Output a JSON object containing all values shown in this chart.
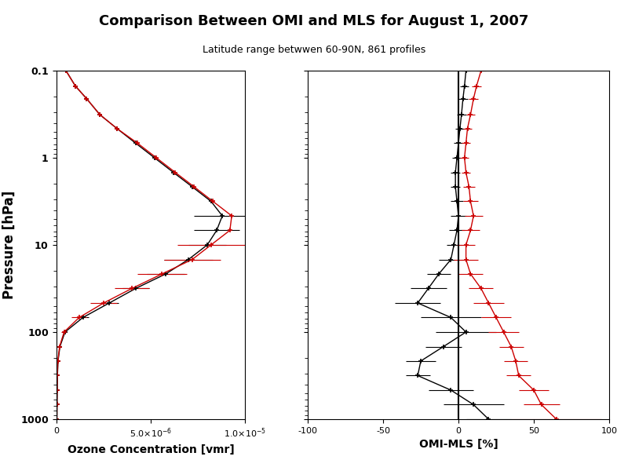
{
  "title": "Comparison Between OMI and MLS for August 1, 2007",
  "subtitle": "Latitude range betwwen 60-90N, 861 profiles",
  "xlabel_left": "Ozone Concentration [vmr]",
  "xlabel_right": "OMI-MLS [%]",
  "ylabel": "Pressure [hPa]",
  "pressure": [
    0.1,
    0.15,
    0.21,
    0.32,
    0.46,
    0.68,
    1.0,
    1.47,
    2.15,
    3.16,
    4.64,
    6.81,
    10.0,
    14.7,
    21.5,
    31.6,
    46.4,
    68.1,
    100.0,
    147.0,
    215.0,
    316.0,
    464.0,
    681.0,
    1000.0
  ],
  "mls_vmr": [
    5e-07,
    1e-06,
    1.6e-06,
    2.3e-06,
    3.2e-06,
    4.2e-06,
    5.2e-06,
    6.2e-06,
    7.2e-06,
    8.2e-06,
    8.8e-06,
    8.5e-06,
    8e-06,
    7e-06,
    5.8e-06,
    4.2e-06,
    2.8e-06,
    1.4e-06,
    4.5e-07,
    1.8e-07,
    8e-08,
    5e-08,
    3.5e-08,
    2.5e-08,
    2e-08
  ],
  "mls_xerr": [
    1e-08,
    1e-08,
    1e-08,
    1e-08,
    1e-08,
    1e-08,
    1e-08,
    1e-08,
    1e-08,
    5e-08,
    1.5e-06,
    1.2e-06,
    1e-06,
    1.3e-06,
    1e-06,
    7e-07,
    5e-07,
    3e-07,
    1e-07,
    5e-08,
    2e-08,
    1e-08,
    5e-09,
    3e-09,
    2e-09
  ],
  "omi_vmr": [
    5e-07,
    1e-06,
    1.6e-06,
    2.3e-06,
    3.2e-06,
    4.3e-06,
    5.3e-06,
    6.3e-06,
    7.3e-06,
    8.3e-06,
    9.3e-06,
    9.2e-06,
    8.2e-06,
    7.2e-06,
    5.6e-06,
    4e-06,
    2.5e-06,
    1.2e-06,
    4e-07,
    1.6e-07,
    7e-08,
    4.5e-08,
    3.2e-08,
    2.3e-08,
    1.8e-08
  ],
  "omi_xerr": [
    1e-08,
    1e-08,
    1e-08,
    1e-08,
    1e-08,
    1e-08,
    1e-08,
    1e-08,
    1e-08,
    1e-08,
    1e-08,
    1e-08,
    1.8e-06,
    1.5e-06,
    1.3e-06,
    9e-07,
    7e-07,
    4e-07,
    1.5e-07,
    7e-08,
    3e-08,
    1.5e-08,
    8e-09,
    4e-09,
    2e-09
  ],
  "diff_pct_black": [
    5,
    4,
    3,
    2,
    1,
    0,
    -1,
    -2,
    -2,
    -1,
    0,
    -1,
    -3,
    -5,
    -13,
    -20,
    -27,
    -5,
    5,
    -10,
    -25,
    -27,
    -5,
    10,
    20
  ],
  "diff_err_black": [
    3,
    3,
    3,
    3,
    3,
    3,
    3,
    3,
    3,
    4,
    5,
    5,
    5,
    8,
    8,
    12,
    15,
    20,
    20,
    12,
    10,
    8,
    15,
    20,
    15
  ],
  "diff_pct_red": [
    15,
    12,
    10,
    8,
    6,
    5,
    4,
    5,
    7,
    8,
    10,
    8,
    5,
    5,
    8,
    15,
    20,
    25,
    30,
    35,
    38,
    40,
    50,
    55,
    65
  ],
  "diff_err_red": [
    3,
    3,
    3,
    3,
    3,
    3,
    3,
    3,
    4,
    5,
    6,
    6,
    6,
    8,
    8,
    8,
    10,
    10,
    10,
    8,
    8,
    8,
    10,
    12,
    30
  ],
  "bg_color": "#ffffff",
  "color_black": "#000000",
  "color_red": "#cc0000",
  "xlim_left": [
    0,
    1e-05
  ],
  "xlim_right": [
    -100,
    100
  ],
  "ylim": [
    1000.0,
    0.1
  ]
}
